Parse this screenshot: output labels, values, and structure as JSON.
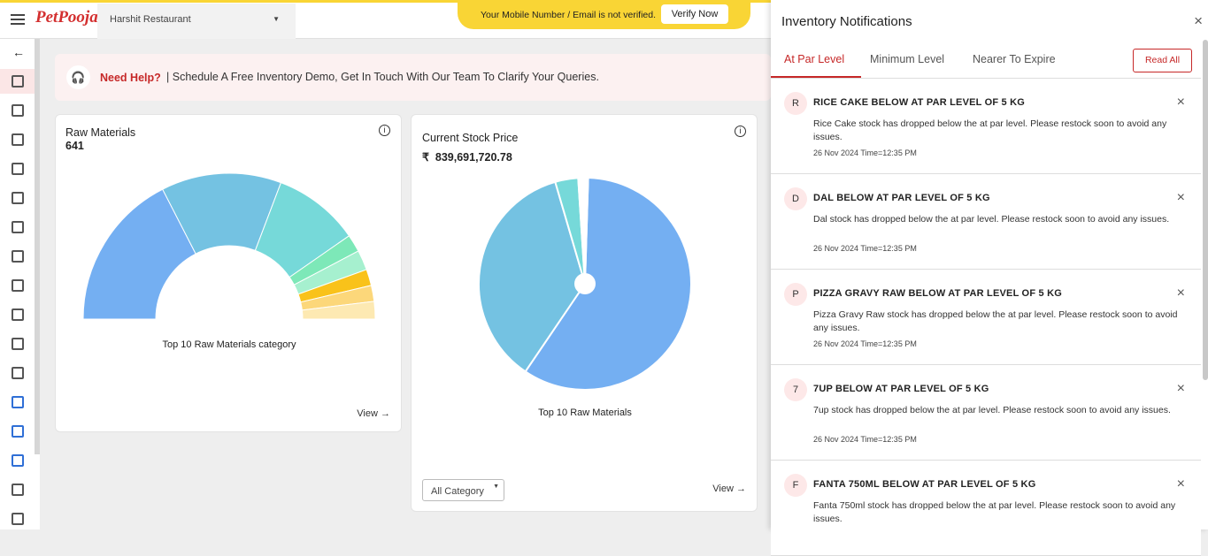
{
  "header": {
    "logo": "PetPooja",
    "restaurant": "Harshit Restaurant",
    "banner": "Your Mobile Number / Email is not verified.",
    "verify_button": "Verify Now"
  },
  "help": {
    "title": "Need Help?",
    "text": "Schedule A Free Inventory Demo, Get In Touch With Our Team To Clarify Your Queries."
  },
  "chart_data": [
    {
      "type": "half-donut",
      "title": "Raw Materials",
      "subtitle": "641",
      "caption": "Top 10 Raw Materials category",
      "link": "View",
      "values": [
        63,
        48,
        34.5,
        7,
        8,
        6.5,
        6.4,
        7
      ],
      "colors": [
        "#74aff2",
        "#74c2e2",
        "#76d9d9",
        "#7de8b8",
        "#a6f0cf",
        "#f9c21a",
        "#fcd77a",
        "#fde9b2"
      ]
    },
    {
      "type": "pie",
      "title": "Current Stock Price",
      "subtitle": "₹  839,691,720.78",
      "caption": "Top 10 Raw Materials",
      "link": "View",
      "filter": "All Category",
      "values": [
        59,
        36,
        3.5,
        1.5
      ],
      "colors": [
        "#74aff2",
        "#74c2e2",
        "#76d9d9",
        "#ffffff"
      ]
    }
  ],
  "notifications": {
    "title": "Inventory Notifications",
    "tabs": [
      "At Par Level",
      "Minimum Level",
      "Nearer To Expire"
    ],
    "read_all": "Read All",
    "items": [
      {
        "initial": "R",
        "title": "RICE CAKE BELOW AT PAR LEVEL OF 5 KG",
        "text": "Rice Cake stock has dropped below the at par level. Please restock soon to avoid any issues.",
        "time": "26 Nov 2024 Time=12:35 PM"
      },
      {
        "initial": "D",
        "title": "DAL BELOW AT PAR LEVEL OF 5 KG",
        "text": "Dal stock has dropped below the at par level. Please restock soon to avoid any issues.",
        "time": "26 Nov 2024 Time=12:35 PM"
      },
      {
        "initial": "P",
        "title": "PIZZA GRAVY RAW BELOW AT PAR LEVEL OF 5 KG",
        "text": "Pizza Gravy Raw stock has dropped below the at par level. Please restock soon to avoid any issues.",
        "time": "26 Nov 2024 Time=12:35 PM"
      },
      {
        "initial": "7",
        "title": "7UP BELOW AT PAR LEVEL OF 5 KG",
        "text": "7up stock has dropped below the at par level. Please restock soon to avoid any issues.",
        "time": "26 Nov 2024 Time=12:35 PM"
      },
      {
        "initial": "F",
        "title": "FANTA 750ML BELOW AT PAR LEVEL OF 5 KG",
        "text": "Fanta 750ml stock has dropped below the at par level. Please restock soon to avoid any issues."
      }
    ]
  }
}
